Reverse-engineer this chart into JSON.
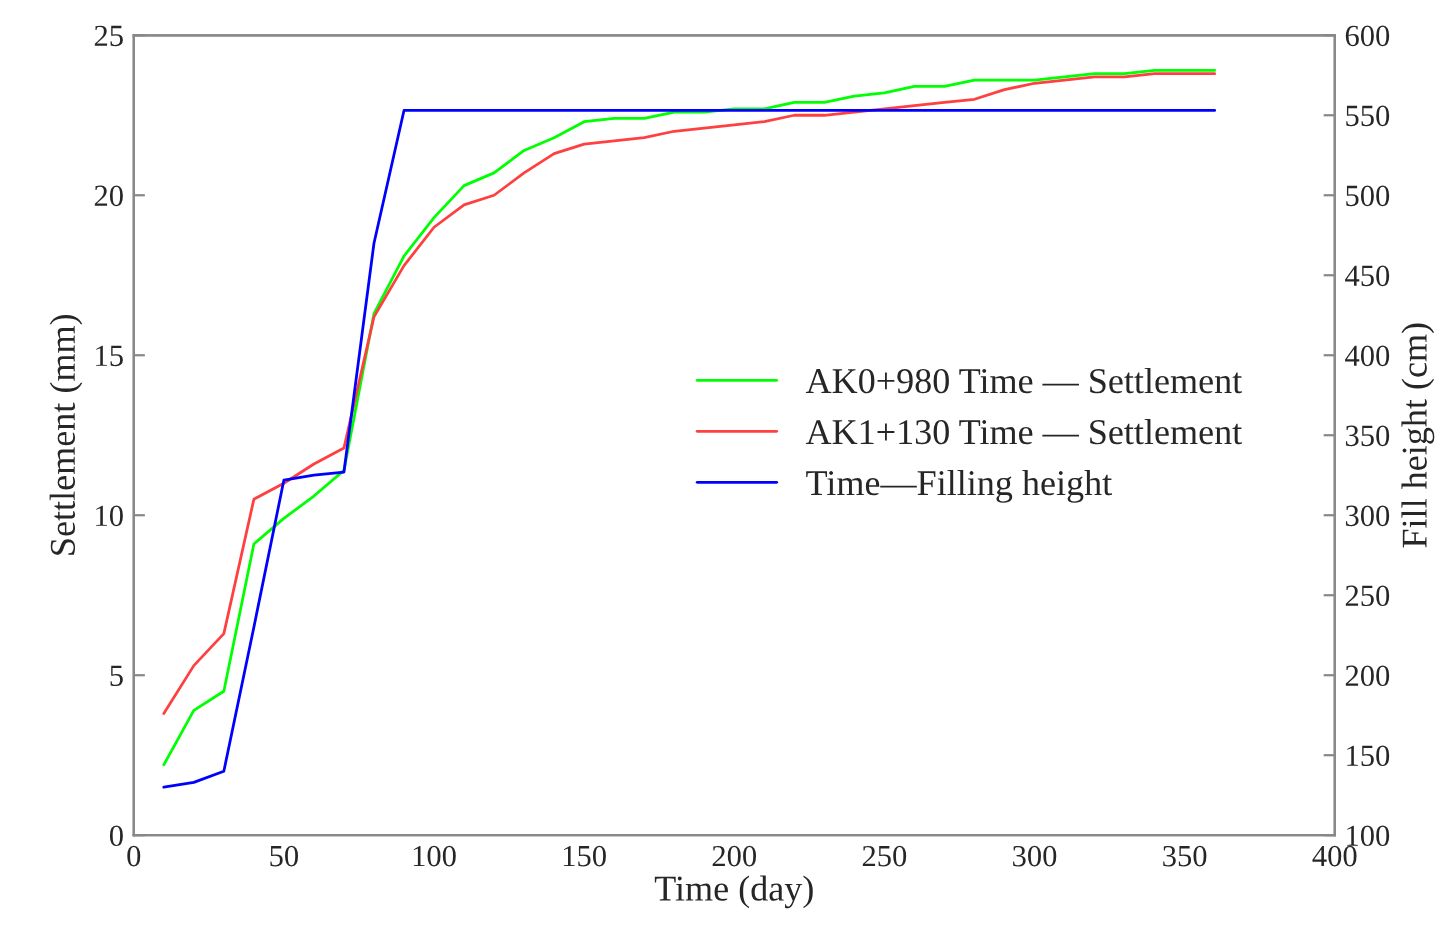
{
  "chart_data": {
    "type": "line",
    "xlabel": "Time (day)",
    "ylabel": "Settlement (mm)",
    "y2label": "Fill height (cm)",
    "x": [
      10,
      20,
      30,
      40,
      50,
      60,
      70,
      80,
      90,
      100,
      110,
      120,
      130,
      140,
      150,
      160,
      170,
      180,
      190,
      200,
      210,
      220,
      230,
      240,
      250,
      260,
      270,
      280,
      290,
      300,
      310,
      320,
      330,
      340,
      350,
      360
    ],
    "xlim": [
      0,
      400
    ],
    "xticks": [
      0,
      50,
      100,
      150,
      200,
      250,
      300,
      350,
      400
    ],
    "ylim": [
      0,
      25
    ],
    "yticks": [
      0,
      5,
      10,
      15,
      20,
      25
    ],
    "y2lim": [
      100,
      600
    ],
    "y2ticks": [
      100,
      150,
      200,
      250,
      300,
      350,
      400,
      450,
      500,
      550,
      600
    ],
    "grid": false,
    "legend": "right",
    "line_style": "solid",
    "marker": "none",
    "series": [
      {
        "name": "AK0+980 Time — Settlement",
        "color": "#00ff00",
        "values": [
          2.2,
          3.9,
          4.5,
          9.1,
          9.9,
          10.6,
          11.4,
          16.3,
          18.1,
          19.3,
          20.3,
          20.7,
          21.4,
          21.8,
          22.3,
          22.4,
          22.4,
          22.6,
          22.6,
          22.7,
          22.7,
          22.9,
          22.9,
          23.1,
          23.2,
          23.4,
          23.4,
          23.6,
          23.6,
          23.6,
          23.7,
          23.8,
          23.8,
          23.9,
          23.9,
          23.9
        ]
      },
      {
        "name": "AK1+130 Time — Settlement",
        "color": "#ff4040",
        "values": [
          3.8,
          5.3,
          6.3,
          10.5,
          11.0,
          11.6,
          12.1,
          16.2,
          17.8,
          19.0,
          19.7,
          20.0,
          20.7,
          21.3,
          21.6,
          21.7,
          21.8,
          22.0,
          22.1,
          22.2,
          22.3,
          22.5,
          22.5,
          22.6,
          22.7,
          22.8,
          22.9,
          23.0,
          23.3,
          23.5,
          23.6,
          23.7,
          23.7,
          23.8,
          23.8,
          23.8
        ]
      },
      {
        "name": "Time—Filling height",
        "color": "#0000ff",
        "axis": "y2",
        "x": [
          10,
          20,
          30,
          40,
          50,
          60,
          70,
          80,
          90,
          360
        ],
        "values": [
          130,
          133,
          140,
          230,
          322,
          325,
          327,
          470,
          553,
          553
        ]
      }
    ]
  }
}
